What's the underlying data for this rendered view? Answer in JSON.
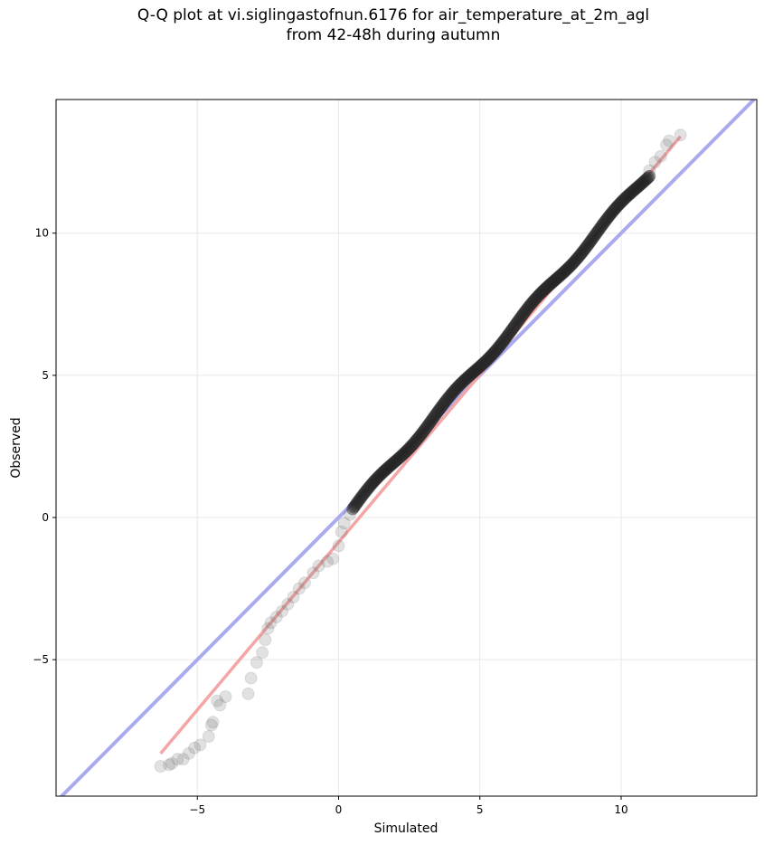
{
  "chart_data": {
    "type": "scatter",
    "title_line1": "Q-Q plot at vi.siglingastofnun.6176 for air_temperature_at_2m_agl",
    "title_line2": "from 42-48h during autumn",
    "xlabel": "Simulated",
    "ylabel": "Observed",
    "xlim": [
      -10,
      14.8
    ],
    "ylim": [
      -9.8,
      14.7
    ],
    "xticks": [
      -5,
      0,
      5,
      10
    ],
    "yticks": [
      -5,
      0,
      5,
      10
    ],
    "xtick_labels": [
      "−5",
      "0",
      "5",
      "10"
    ],
    "ytick_labels": [
      "−5",
      "0",
      "5",
      "10"
    ],
    "grid": true,
    "identity_line": {
      "x": [
        -10,
        14.8
      ],
      "y": [
        -10,
        14.8
      ],
      "color": "#aaaaee"
    },
    "fit_line": {
      "x": [
        -6.3,
        12.1
      ],
      "y": [
        -8.3,
        13.4
      ],
      "color": "#f4a6a6"
    },
    "tail_points": [
      {
        "x": -6.3,
        "y": -8.75
      },
      {
        "x": -6.0,
        "y": -8.7
      },
      {
        "x": -5.9,
        "y": -8.65
      },
      {
        "x": -5.7,
        "y": -8.5
      },
      {
        "x": -5.5,
        "y": -8.5
      },
      {
        "x": -5.3,
        "y": -8.3
      },
      {
        "x": -5.1,
        "y": -8.1
      },
      {
        "x": -4.9,
        "y": -8.0
      },
      {
        "x": -4.6,
        "y": -7.7
      },
      {
        "x": -4.5,
        "y": -7.3
      },
      {
        "x": -4.45,
        "y": -7.2
      },
      {
        "x": -4.3,
        "y": -6.45
      },
      {
        "x": -4.2,
        "y": -6.6
      },
      {
        "x": -4.0,
        "y": -6.3
      },
      {
        "x": -3.2,
        "y": -6.2
      },
      {
        "x": -3.1,
        "y": -5.65
      },
      {
        "x": -2.9,
        "y": -5.1
      },
      {
        "x": -2.7,
        "y": -4.75
      },
      {
        "x": -2.6,
        "y": -4.3
      },
      {
        "x": -2.5,
        "y": -3.9
      },
      {
        "x": -2.4,
        "y": -3.7
      },
      {
        "x": -2.2,
        "y": -3.5
      },
      {
        "x": -2.0,
        "y": -3.3
      },
      {
        "x": -1.8,
        "y": -3.05
      },
      {
        "x": -1.6,
        "y": -2.8
      },
      {
        "x": -1.4,
        "y": -2.5
      },
      {
        "x": -1.2,
        "y": -2.3
      },
      {
        "x": -0.9,
        "y": -1.95
      },
      {
        "x": -0.7,
        "y": -1.7
      },
      {
        "x": -0.4,
        "y": -1.55
      },
      {
        "x": -0.2,
        "y": -1.45
      },
      {
        "x": 0.0,
        "y": -1.0
      },
      {
        "x": 0.1,
        "y": -0.5
      },
      {
        "x": 0.2,
        "y": -0.2
      },
      {
        "x": 0.4,
        "y": 0.1
      },
      {
        "x": 11.0,
        "y": 12.2
      },
      {
        "x": 11.2,
        "y": 12.5
      },
      {
        "x": 11.4,
        "y": 12.7
      },
      {
        "x": 11.6,
        "y": 13.1
      },
      {
        "x": 11.7,
        "y": 13.25
      },
      {
        "x": 12.1,
        "y": 13.45
      }
    ],
    "dense_segments": [
      {
        "x": [
          0.5,
          11.0
        ],
        "y": [
          0.3,
          12.1
        ]
      }
    ],
    "dense_point_count": 220
  }
}
